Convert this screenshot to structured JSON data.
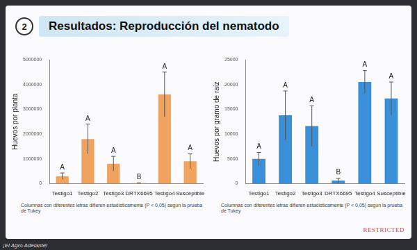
{
  "slide": {
    "number": "2",
    "title": "Resultados: Reproducción del nematodo",
    "watermark": "RESTRICTED",
    "credit": "¡El Agro Adelante!"
  },
  "chart_data": [
    {
      "type": "bar",
      "y_label": "Huevos por planta",
      "categories": [
        "Testigo1",
        "Testigo2",
        "Testigo3",
        "DRTX6695",
        "Testigo4",
        "Susceptible"
      ],
      "values": [
        300000,
        1800000,
        800000,
        20000,
        3600000,
        900000
      ],
      "errors": [
        130000,
        600000,
        300000,
        10000,
        900000,
        300000
      ],
      "letters": [
        "A",
        "A",
        "A",
        "B",
        "A",
        "A"
      ],
      "color": "#f0a35e",
      "ylim": [
        0,
        5000000
      ],
      "yticks": [
        0,
        1000000,
        2000000,
        3000000,
        4000000,
        5000000
      ],
      "grid": false,
      "annotation": "Columnas con diferentes letras difieren estadísticamente (P < 0,05) según la prueba de Tukey"
    },
    {
      "type": "bar",
      "y_label": "Huevos por gramo de raíz",
      "categories": [
        "Testigo1",
        "Testigo2",
        "Testigo3",
        "DRTX6695",
        "Testigo4",
        "Susceptible"
      ],
      "values": [
        5000,
        13800,
        11600,
        600,
        20500,
        17200
      ],
      "errors": [
        1300,
        4900,
        4100,
        500,
        2300,
        3300
      ],
      "letters": [
        "A",
        "A",
        "A",
        "B",
        "A",
        "A"
      ],
      "color": "#3a8fd9",
      "ylim": [
        0,
        25000
      ],
      "yticks": [
        0,
        5000,
        10000,
        15000,
        20000,
        25000
      ],
      "grid": false,
      "annotation": "Columnas con diferentes letras difieren estadísticamente (P < 0,05) según la prueba de Tukey"
    }
  ]
}
